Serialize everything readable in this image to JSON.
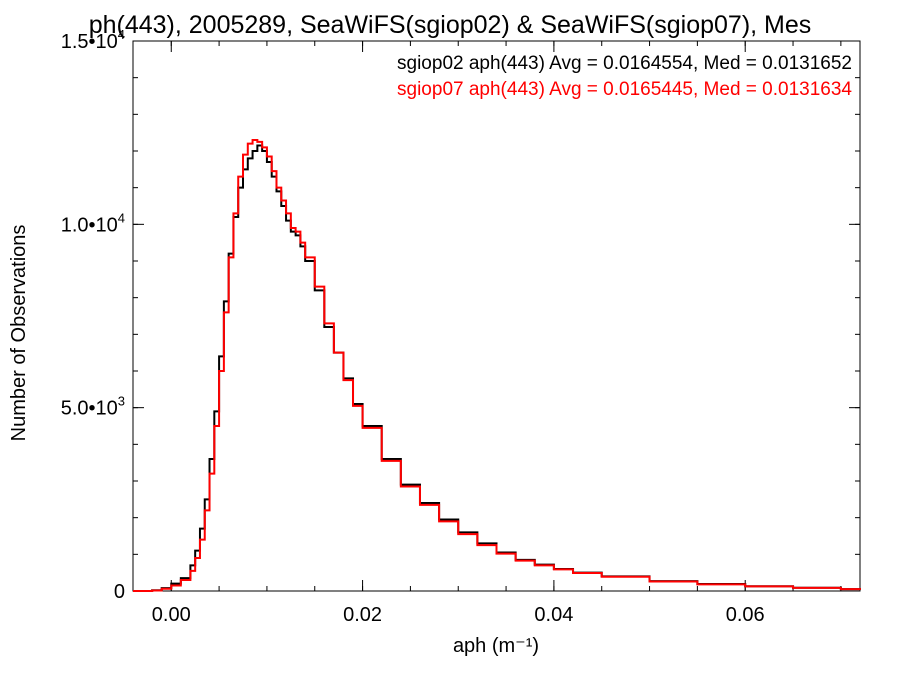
{
  "chart_data": {
    "type": "line",
    "step": true,
    "title": "ph(443), 2005289, SeaWiFS(sgiop02) & SeaWiFS(sgiop07), Mes",
    "xlabel": "aph (m⁻¹)",
    "ylabel": "Number of Observations",
    "xlim": [
      -0.004,
      0.072
    ],
    "ylim": [
      0,
      15000
    ],
    "x_ticks": [
      {
        "value": 0.0,
        "label": "0.00"
      },
      {
        "value": 0.02,
        "label": "0.02"
      },
      {
        "value": 0.04,
        "label": "0.04"
      },
      {
        "value": 0.06,
        "label": "0.06"
      }
    ],
    "y_ticks": [
      {
        "value": 0,
        "label": "0",
        "exp": ""
      },
      {
        "value": 5000,
        "label": "5.0•10",
        "exp": "3"
      },
      {
        "value": 10000,
        "label": "1.0•10",
        "exp": "4"
      },
      {
        "value": 15000,
        "label": "1.5•10",
        "exp": "4"
      }
    ],
    "x_minor_step": 0.005,
    "y_minor_step": 1000,
    "grid": false,
    "legend_placement": "top-right",
    "series": [
      {
        "name": "sgiop02",
        "color": "#000000",
        "legend_text": "sgiop02 aph(443) Avg = 0.0164554, Med = 0.0131652",
        "x": [
          -0.004,
          -0.002,
          -0.001,
          0.0,
          0.001,
          0.002,
          0.0025,
          0.003,
          0.0035,
          0.004,
          0.0045,
          0.005,
          0.0055,
          0.006,
          0.0065,
          0.007,
          0.0075,
          0.008,
          0.0085,
          0.009,
          0.0095,
          0.01,
          0.0105,
          0.011,
          0.0115,
          0.012,
          0.0125,
          0.013,
          0.0135,
          0.014,
          0.015,
          0.016,
          0.017,
          0.018,
          0.019,
          0.02,
          0.022,
          0.024,
          0.026,
          0.028,
          0.03,
          0.032,
          0.034,
          0.036,
          0.038,
          0.04,
          0.042,
          0.045,
          0.05,
          0.055,
          0.06,
          0.065,
          0.07,
          0.072
        ],
        "y": [
          0,
          20,
          80,
          200,
          350,
          700,
          1100,
          1700,
          2500,
          3600,
          4900,
          6400,
          7900,
          9200,
          10200,
          11000,
          11500,
          11800,
          12000,
          12150,
          12000,
          11700,
          11300,
          10900,
          10500,
          10100,
          9800,
          9700,
          9400,
          9000,
          8200,
          7200,
          6500,
          5800,
          5100,
          4500,
          3600,
          2900,
          2400,
          1950,
          1600,
          1300,
          1050,
          850,
          720,
          600,
          500,
          400,
          270,
          190,
          130,
          90,
          50,
          30
        ]
      },
      {
        "name": "sgiop07",
        "color": "#ff0000",
        "legend_text": "sgiop07 aph(443) Avg = 0.0165445, Med = 0.0131634",
        "x": [
          -0.004,
          -0.002,
          -0.001,
          0.0,
          0.001,
          0.002,
          0.0025,
          0.003,
          0.0035,
          0.004,
          0.0045,
          0.005,
          0.0055,
          0.006,
          0.0065,
          0.007,
          0.0075,
          0.008,
          0.0085,
          0.009,
          0.0095,
          0.01,
          0.0105,
          0.011,
          0.0115,
          0.012,
          0.0125,
          0.013,
          0.0135,
          0.014,
          0.015,
          0.016,
          0.017,
          0.018,
          0.019,
          0.02,
          0.022,
          0.024,
          0.026,
          0.028,
          0.03,
          0.032,
          0.034,
          0.036,
          0.038,
          0.04,
          0.042,
          0.045,
          0.05,
          0.055,
          0.06,
          0.065,
          0.07,
          0.072
        ],
        "y": [
          0,
          15,
          60,
          150,
          300,
          550,
          900,
          1400,
          2200,
          3200,
          4500,
          6000,
          7600,
          9100,
          10300,
          11300,
          11900,
          12200,
          12300,
          12250,
          12100,
          11850,
          11450,
          11000,
          10650,
          10300,
          9900,
          9800,
          9500,
          9100,
          8300,
          7300,
          6500,
          5750,
          5050,
          4450,
          3550,
          2850,
          2350,
          1900,
          1550,
          1250,
          1020,
          830,
          700,
          590,
          490,
          390,
          260,
          180,
          125,
          85,
          50,
          30
        ]
      }
    ]
  }
}
